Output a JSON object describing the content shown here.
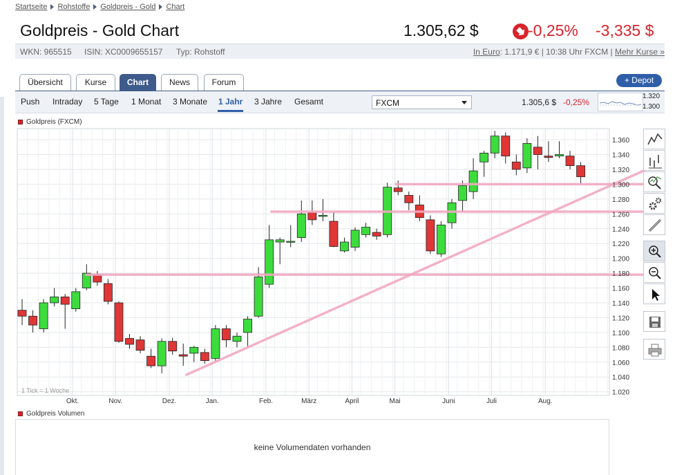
{
  "breadcrumb": {
    "items": [
      "Startseite",
      "Rohstoffe",
      "Goldpreis - Gold",
      "Chart"
    ]
  },
  "header": {
    "title": "Goldpreis - Gold Chart",
    "price": "1.305,62 $",
    "change_pct": "-0,25%",
    "change_abs": "-3,335 $",
    "trend_icon": "down-arrow-icon",
    "down_color": "#d8232a"
  },
  "info": {
    "wkn": "WKN: 965515",
    "isin": "ISIN: XC0009655157",
    "type": "Typ: Rohstoff",
    "in_euro_label": "In Euro",
    "euro_rest": ": 1.171,9 € | 10:38 Uhr FXCM | ",
    "more_prices": "Mehr Kurse »"
  },
  "tabs": [
    {
      "label": "Übersicht",
      "active": false
    },
    {
      "label": "Kurse",
      "active": false
    },
    {
      "label": "Chart",
      "active": true
    },
    {
      "label": "News",
      "active": false
    },
    {
      "label": "Forum",
      "active": false
    }
  ],
  "depot_button": "+ Depot",
  "ranges": [
    {
      "label": "Push",
      "active": false
    },
    {
      "label": "Intraday",
      "active": false
    },
    {
      "label": "5 Tage",
      "active": false
    },
    {
      "label": "1 Monat",
      "active": false
    },
    {
      "label": "3 Monate",
      "active": false
    },
    {
      "label": "1 Jahr",
      "active": true
    },
    {
      "label": "3 Jahre",
      "active": false
    },
    {
      "label": "Gesamt",
      "active": false
    }
  ],
  "exchange_select": "FXCM",
  "mini_quote": {
    "price": "1.305,6 $",
    "change": "-0,25%",
    "hi": "1.320",
    "lo": "1.300"
  },
  "chart_legend": "Goldpreis (FXCM)",
  "tick_note": "1 Tick = 1 Woche",
  "volume_legend": "Goldpreis Volumen",
  "volume_message": "keine Volumendaten vorhanden",
  "toolbar": [
    "line-chart-icon",
    "ohlc-bars-icon",
    "indicator-magnifier-icon",
    "settings-gears-icon",
    "draw-line-icon",
    "zoom-in-icon",
    "zoom-out-icon",
    "pointer-icon",
    "save-icon",
    "print-icon"
  ],
  "colors": {
    "up": "#3ddc3d",
    "down": "#e03636",
    "trendline": "#f2a9c2",
    "accent": "#2f5ea8"
  },
  "chart_data": {
    "type": "candlestick",
    "title": "Goldpreis (FXCM)",
    "interval": "1 Woche",
    "ylim": [
      1020,
      1380
    ],
    "y_ticks": [
      "1.360",
      "1.340",
      "1.320",
      "1.300",
      "1.280",
      "1.260",
      "1.240",
      "1.220",
      "1.200",
      "1.180",
      "1.160",
      "1.140",
      "1.120",
      "1.100",
      "1.080",
      "1.060",
      "1.040",
      "1.020"
    ],
    "y_tick_values": [
      1360,
      1340,
      1320,
      1300,
      1280,
      1260,
      1240,
      1220,
      1200,
      1180,
      1160,
      1140,
      1120,
      1100,
      1080,
      1060,
      1040,
      1020
    ],
    "x_labels": [
      "Okt.",
      "Nov.",
      "Dez.",
      "Jan.",
      "Feb.",
      "März",
      "April",
      "Mai",
      "Juni",
      "Juli",
      "Aug."
    ],
    "x_label_weeks": [
      4.7,
      8.7,
      13.7,
      17.7,
      22.7,
      26.7,
      30.7,
      34.7,
      39.7,
      43.7,
      48.7
    ],
    "candles": [
      {
        "o": 1130,
        "h": 1145,
        "l": 1110,
        "c": 1122
      },
      {
        "o": 1122,
        "h": 1130,
        "l": 1100,
        "c": 1110
      },
      {
        "o": 1105,
        "h": 1145,
        "l": 1100,
        "c": 1140
      },
      {
        "o": 1140,
        "h": 1160,
        "l": 1135,
        "c": 1148
      },
      {
        "o": 1148,
        "h": 1152,
        "l": 1105,
        "c": 1138
      },
      {
        "o": 1132,
        "h": 1160,
        "l": 1128,
        "c": 1155
      },
      {
        "o": 1160,
        "h": 1192,
        "l": 1157,
        "c": 1180
      },
      {
        "o": 1178,
        "h": 1183,
        "l": 1163,
        "c": 1168
      },
      {
        "o": 1166,
        "h": 1172,
        "l": 1138,
        "c": 1142
      },
      {
        "o": 1140,
        "h": 1142,
        "l": 1086,
        "c": 1088
      },
      {
        "o": 1092,
        "h": 1098,
        "l": 1078,
        "c": 1084
      },
      {
        "o": 1090,
        "h": 1095,
        "l": 1072,
        "c": 1076
      },
      {
        "o": 1068,
        "h": 1078,
        "l": 1052,
        "c": 1055
      },
      {
        "o": 1055,
        "h": 1092,
        "l": 1045,
        "c": 1088
      },
      {
        "o": 1088,
        "h": 1093,
        "l": 1070,
        "c": 1075
      },
      {
        "o": 1070,
        "h": 1085,
        "l": 1055,
        "c": 1068
      },
      {
        "o": 1072,
        "h": 1082,
        "l": 1060,
        "c": 1080
      },
      {
        "o": 1073,
        "h": 1078,
        "l": 1058,
        "c": 1062
      },
      {
        "o": 1065,
        "h": 1110,
        "l": 1060,
        "c": 1105
      },
      {
        "o": 1105,
        "h": 1110,
        "l": 1080,
        "c": 1090
      },
      {
        "o": 1088,
        "h": 1100,
        "l": 1080,
        "c": 1095
      },
      {
        "o": 1100,
        "h": 1122,
        "l": 1080,
        "c": 1118
      },
      {
        "o": 1122,
        "h": 1188,
        "l": 1120,
        "c": 1175
      },
      {
        "o": 1165,
        "h": 1245,
        "l": 1160,
        "c": 1225
      },
      {
        "o": 1222,
        "h": 1228,
        "l": 1192,
        "c": 1225
      },
      {
        "o": 1222,
        "h": 1245,
        "l": 1215,
        "c": 1223
      },
      {
        "o": 1228,
        "h": 1278,
        "l": 1222,
        "c": 1260
      },
      {
        "o": 1262,
        "h": 1278,
        "l": 1245,
        "c": 1252
      },
      {
        "o": 1258,
        "h": 1280,
        "l": 1250,
        "c": 1258
      },
      {
        "o": 1250,
        "h": 1262,
        "l": 1215,
        "c": 1216
      },
      {
        "o": 1210,
        "h": 1228,
        "l": 1208,
        "c": 1222
      },
      {
        "o": 1215,
        "h": 1242,
        "l": 1210,
        "c": 1238
      },
      {
        "o": 1232,
        "h": 1248,
        "l": 1228,
        "c": 1242
      },
      {
        "o": 1235,
        "h": 1240,
        "l": 1225,
        "c": 1230
      },
      {
        "o": 1232,
        "h": 1302,
        "l": 1228,
        "c": 1296
      },
      {
        "o": 1295,
        "h": 1305,
        "l": 1285,
        "c": 1290
      },
      {
        "o": 1285,
        "h": 1290,
        "l": 1265,
        "c": 1275
      },
      {
        "o": 1272,
        "h": 1285,
        "l": 1250,
        "c": 1255
      },
      {
        "o": 1252,
        "h": 1258,
        "l": 1206,
        "c": 1210
      },
      {
        "o": 1206,
        "h": 1250,
        "l": 1202,
        "c": 1245
      },
      {
        "o": 1248,
        "h": 1280,
        "l": 1240,
        "c": 1275
      },
      {
        "o": 1278,
        "h": 1305,
        "l": 1262,
        "c": 1298
      },
      {
        "o": 1290,
        "h": 1335,
        "l": 1280,
        "c": 1318
      },
      {
        "o": 1330,
        "h": 1345,
        "l": 1310,
        "c": 1342
      },
      {
        "o": 1342,
        "h": 1372,
        "l": 1335,
        "c": 1365
      },
      {
        "o": 1365,
        "h": 1370,
        "l": 1328,
        "c": 1338
      },
      {
        "o": 1330,
        "h": 1340,
        "l": 1312,
        "c": 1320
      },
      {
        "o": 1322,
        "h": 1362,
        "l": 1315,
        "c": 1355
      },
      {
        "o": 1350,
        "h": 1365,
        "l": 1320,
        "c": 1340
      },
      {
        "o": 1338,
        "h": 1358,
        "l": 1330,
        "c": 1336
      },
      {
        "o": 1338,
        "h": 1358,
        "l": 1335,
        "c": 1340
      },
      {
        "o": 1338,
        "h": 1345,
        "l": 1320,
        "c": 1325
      },
      {
        "o": 1325,
        "h": 1330,
        "l": 1300,
        "c": 1310
      }
    ],
    "overlays": [
      {
        "kind": "hline",
        "y": 1178,
        "from_week": 6,
        "to_week": 60
      },
      {
        "kind": "hline",
        "y": 1263,
        "from_week": 23.2,
        "to_week": 60
      },
      {
        "kind": "hline",
        "y": 1300,
        "from_week": 34.8,
        "to_week": 60
      },
      {
        "kind": "trend",
        "from": [
          15.3,
          1043
        ],
        "to": [
          60,
          1320
        ]
      }
    ]
  }
}
